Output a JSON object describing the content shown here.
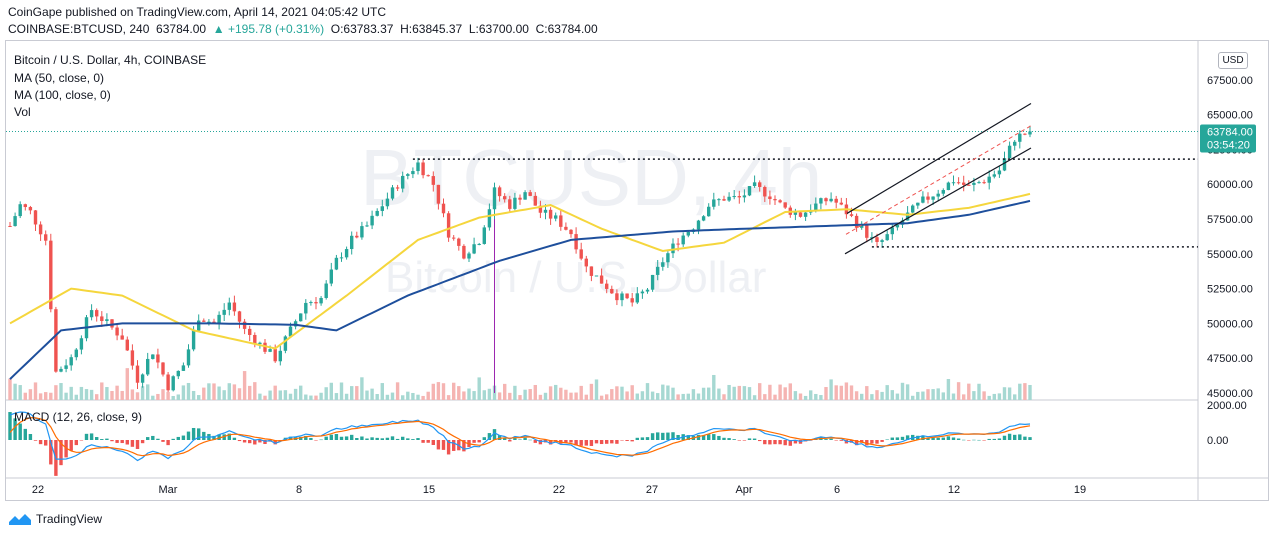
{
  "header": {
    "publisher_line": "CoinGape published on TradingView.com, April 14, 2021 04:05:42 UTC",
    "symbol": "COINBASE:BTCUSD, 240",
    "close_price": "63784.00",
    "change": "▲ +195.78 (+0.31%)",
    "open": "O:63783.37",
    "high": "H:63845.37",
    "low": "L:63700.00",
    "close": "C:63784.00"
  },
  "legend": {
    "title": "Bitcoin / U.S. Dollar, 4h, COINBASE",
    "ma50": "MA (50, close, 0)",
    "ma100": "MA (100, close, 0)",
    "vol": "Vol",
    "macd": "MACD (12, 26, close, 9)"
  },
  "watermark": {
    "symbol": "BTCUSD, 4h",
    "name": "Bitcoin / U.S. Dollar"
  },
  "currency_badge": "USD",
  "last_price_label": {
    "price": "63784.00",
    "countdown": "03:54:20"
  },
  "footer": {
    "brand": "TradingView"
  },
  "colors": {
    "up": "#26a69a",
    "down": "#ef5350",
    "ma50": "#f5d63d",
    "ma100": "#1e4f9c",
    "macd": "#2196f3",
    "signal": "#ff6d00",
    "badge": "#26a69a"
  },
  "chart_data": {
    "type": "candlestick",
    "price_axis": {
      "ticks": [
        45000,
        47500,
        50000,
        52500,
        55000,
        57500,
        60000,
        62500,
        65000,
        67500
      ],
      "labels": [
        "45000.00",
        "47500.00",
        "50000.00",
        "52500.00",
        "55000.00",
        "57500.00",
        "60000.00",
        "62500.00",
        "65000.00",
        "67500.00"
      ]
    },
    "macd_axis": {
      "ticks": [
        2000,
        0
      ],
      "labels": [
        "2000.00",
        "0.00"
      ]
    },
    "time_axis": {
      "labels": [
        "22",
        "Mar",
        "8",
        "15",
        "22",
        "27",
        "Apr",
        "6",
        "12",
        "19"
      ]
    },
    "price_anchors": [
      [
        0,
        57000
      ],
      [
        2,
        58500
      ],
      [
        4,
        58000
      ],
      [
        7,
        56000
      ],
      [
        9,
        46500
      ],
      [
        12,
        47500
      ],
      [
        16,
        51000
      ],
      [
        19,
        50000
      ],
      [
        22,
        49000
      ],
      [
        25,
        46000
      ],
      [
        28,
        48000
      ],
      [
        31,
        45500
      ],
      [
        34,
        47000
      ],
      [
        37,
        50500
      ],
      [
        40,
        50000
      ],
      [
        43,
        51500
      ],
      [
        46,
        49500
      ],
      [
        49,
        48500
      ],
      [
        52,
        47500
      ],
      [
        55,
        49500
      ],
      [
        58,
        51500
      ],
      [
        61,
        51800
      ],
      [
        64,
        54500
      ],
      [
        67,
        56000
      ],
      [
        70,
        57000
      ],
      [
        73,
        58500
      ],
      [
        76,
        60000
      ],
      [
        80,
        61500
      ],
      [
        83,
        60000
      ],
      [
        86,
        56500
      ],
      [
        89,
        55000
      ],
      [
        92,
        56000
      ],
      [
        95,
        59500
      ],
      [
        98,
        58500
      ],
      [
        101,
        59500
      ],
      [
        104,
        58000
      ],
      [
        107,
        57500
      ],
      [
        110,
        56500
      ],
      [
        113,
        54000
      ],
      [
        116,
        53000
      ],
      [
        119,
        52000
      ],
      [
        122,
        51500
      ],
      [
        125,
        52500
      ],
      [
        128,
        54500
      ],
      [
        131,
        56000
      ],
      [
        134,
        57000
      ],
      [
        137,
        58500
      ],
      [
        140,
        59000
      ],
      [
        143,
        59000
      ],
      [
        146,
        59800
      ],
      [
        149,
        59200
      ],
      [
        152,
        58200
      ],
      [
        155,
        57800
      ],
      [
        158,
        58500
      ],
      [
        161,
        59000
      ],
      [
        164,
        58000
      ],
      [
        167,
        56800
      ],
      [
        170,
        55600
      ],
      [
        173,
        56600
      ],
      [
        176,
        57800
      ],
      [
        179,
        58800
      ],
      [
        182,
        59500
      ],
      [
        185,
        60300
      ],
      [
        188,
        59800
      ],
      [
        191,
        60300
      ],
      [
        194,
        61000
      ],
      [
        197,
        63300
      ],
      [
        200,
        63784
      ]
    ],
    "ma50_anchors": [
      [
        0,
        50000
      ],
      [
        12,
        52500
      ],
      [
        22,
        52000
      ],
      [
        36,
        49500
      ],
      [
        52,
        48200
      ],
      [
        66,
        52000
      ],
      [
        80,
        56000
      ],
      [
        92,
        57600
      ],
      [
        106,
        58500
      ],
      [
        116,
        56800
      ],
      [
        128,
        55200
      ],
      [
        140,
        55800
      ],
      [
        152,
        58000
      ],
      [
        164,
        58200
      ],
      [
        176,
        57800
      ],
      [
        188,
        58300
      ],
      [
        200,
        59300
      ]
    ],
    "ma100_anchors": [
      [
        0,
        46000
      ],
      [
        10,
        49500
      ],
      [
        22,
        50000
      ],
      [
        40,
        50000
      ],
      [
        56,
        49900
      ],
      [
        64,
        49500
      ],
      [
        78,
        52000
      ],
      [
        96,
        54500
      ],
      [
        110,
        56000
      ],
      [
        120,
        56300
      ],
      [
        130,
        56600
      ],
      [
        144,
        56800
      ],
      [
        160,
        57000
      ],
      [
        176,
        57200
      ],
      [
        188,
        57800
      ],
      [
        200,
        58800
      ]
    ],
    "resistance_level": 61800,
    "support_level": 55500,
    "last_price": 63784,
    "spike_candle": {
      "index": 95,
      "low": 45000
    }
  }
}
